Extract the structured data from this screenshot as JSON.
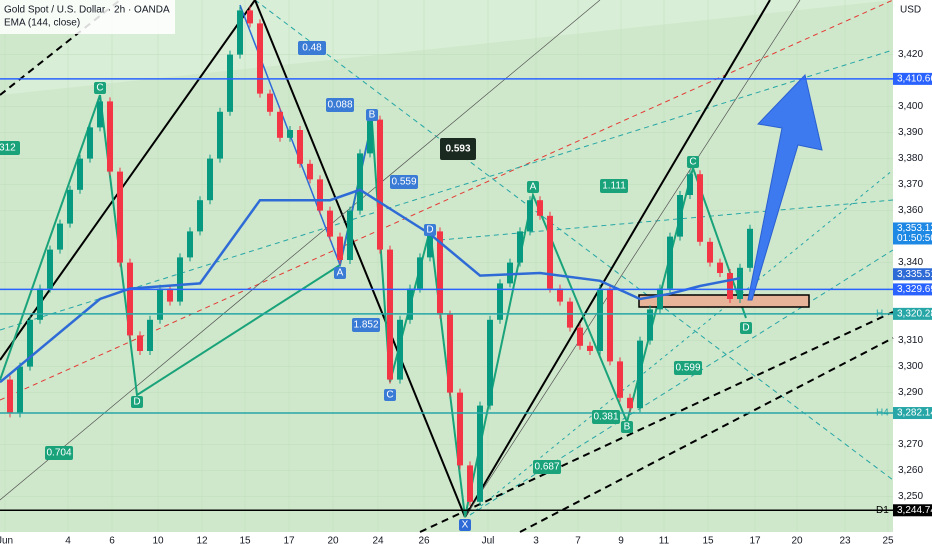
{
  "chart_data": {
    "type": "candlestick",
    "title": "Gold Spot / U.S. Dollar · 2h · OANDA",
    "subtitle": "EMA (144, close)",
    "y_axis_label": "USD",
    "xlim": [
      0,
      89.3
    ],
    "ylim": [
      3241,
      3441
    ],
    "xticks": [
      {
        "value": 0.5,
        "label": "Jun"
      },
      {
        "value": 6.8,
        "label": "4"
      },
      {
        "value": 11.2,
        "label": "6"
      },
      {
        "value": 15.8,
        "label": "10"
      },
      {
        "value": 20.2,
        "label": "12"
      },
      {
        "value": 24.5,
        "label": "15"
      },
      {
        "value": 28.9,
        "label": "17"
      },
      {
        "value": 33.3,
        "label": "20"
      },
      {
        "value": 37.8,
        "label": "24"
      },
      {
        "value": 42.4,
        "label": "26"
      },
      {
        "value": 48.8,
        "label": "Jul"
      },
      {
        "value": 53.6,
        "label": "3"
      },
      {
        "value": 57.8,
        "label": "7"
      },
      {
        "value": 62.1,
        "label": "9"
      },
      {
        "value": 66.4,
        "label": "11"
      },
      {
        "value": 70.8,
        "label": "15"
      },
      {
        "value": 75.5,
        "label": "17"
      },
      {
        "value": 79.7,
        "label": "20"
      },
      {
        "value": 84.5,
        "label": "23"
      },
      {
        "value": 88.8,
        "label": "25"
      }
    ],
    "yticks": [
      {
        "value": 3420,
        "label": "3,420"
      },
      {
        "value": 3400,
        "label": "3,400"
      },
      {
        "value": 3390,
        "label": "3,390"
      },
      {
        "value": 3380,
        "label": "3,380"
      },
      {
        "value": 3370,
        "label": "3,370"
      },
      {
        "value": 3360,
        "label": "3,360"
      },
      {
        "value": 3340,
        "label": "3,340"
      },
      {
        "value": 3310,
        "label": "3,310"
      },
      {
        "value": 3300,
        "label": "3,300"
      },
      {
        "value": 3290,
        "label": "3,290"
      },
      {
        "value": 3270,
        "label": "3,270"
      },
      {
        "value": 3260,
        "label": "3,260"
      },
      {
        "value": 3250,
        "label": "3,250"
      }
    ],
    "up_color": "#089981",
    "down_color": "#f23645",
    "series": [
      {
        "name": "Gold Spot / U.S. Dollar",
        "x": [
          0,
          1,
          2,
          3,
          4,
          5,
          6,
          7,
          8,
          9,
          10,
          11,
          12,
          13,
          14,
          15,
          16,
          17,
          18,
          19,
          20,
          21,
          22,
          23,
          24,
          25,
          26,
          27,
          28,
          29,
          30,
          31,
          32,
          33,
          34,
          35,
          36,
          37,
          38,
          39,
          40,
          41,
          42,
          43,
          44,
          45,
          46,
          47,
          48,
          49,
          50,
          51,
          52,
          53,
          54,
          55,
          56,
          57,
          58,
          59,
          60,
          61,
          62,
          63,
          64,
          65,
          66,
          67,
          68,
          69,
          70,
          71,
          72,
          73,
          74,
          75
        ],
        "values": [
          3295,
          3282,
          3300,
          3318,
          3330,
          3345,
          3355,
          3368,
          3380,
          3392,
          3402,
          3375,
          3340,
          3312,
          3306,
          3318,
          3330,
          3325,
          3342,
          3352,
          3364,
          3380,
          3398,
          3420,
          3437,
          3432,
          3405,
          3398,
          3388,
          3391,
          3378,
          3372,
          3360,
          3350,
          3341,
          3360,
          3382,
          3395,
          3345,
          3295,
          3318,
          3330,
          3342,
          3352,
          3320,
          3290,
          3262,
          3248,
          3285,
          3318,
          3332,
          3340,
          3352,
          3364,
          3358,
          3330,
          3325,
          3315,
          3308,
          3306,
          3330,
          3302,
          3288,
          3284,
          3310,
          3322,
          3330,
          3350,
          3366,
          3374,
          3348,
          3340,
          3336,
          3326,
          3338,
          3353
        ]
      },
      {
        "name": "EMA (144, close)",
        "color": "#2f6bd6",
        "x": [
          0,
          10,
          13,
          20,
          26,
          33,
          36,
          43,
          48,
          54,
          60,
          64,
          67,
          70,
          74
        ],
        "values": [
          3294,
          3326,
          3330,
          3332,
          3364,
          3364,
          3368,
          3351,
          3335,
          3336,
          3333,
          3326,
          3328,
          3331,
          3334
        ]
      }
    ],
    "price_labels": [
      {
        "value": 3410.66,
        "label": "3,410.660",
        "color": "#2962ff",
        "line": true
      },
      {
        "value": 3353.125,
        "label": "3,353.125",
        "color": "#1e88e5",
        "line": false,
        "countdown": "01:50:50"
      },
      {
        "value": 3335.518,
        "label": "3,335.518",
        "color": "#2f6bd6",
        "line": false
      },
      {
        "value": 3329.691,
        "label": "3,329.691",
        "color": "#2962ff",
        "line": true
      },
      {
        "value": 3320.286,
        "label": "3,320.286",
        "color": "#26a6a6",
        "line": true,
        "tag": "H"
      },
      {
        "value": 3282.144,
        "label": "3,282.144",
        "color": "#26a6a6",
        "line": true,
        "tag": "H4"
      },
      {
        "value": 3244.74,
        "label": "3,244.740",
        "color": "#000000",
        "line": true,
        "tag": "D1"
      }
    ],
    "pattern_points": [
      "C",
      "D",
      "A",
      "B",
      "C",
      "D",
      "X",
      "A",
      "B",
      "C",
      "D"
    ],
    "ratios": [
      ".312",
      "0.48",
      "0.088",
      "0.559",
      "1.852",
      "0.704",
      "1.111",
      "0.381",
      "0.599",
      "0.687"
    ],
    "highlight_ratio": "0.593"
  }
}
